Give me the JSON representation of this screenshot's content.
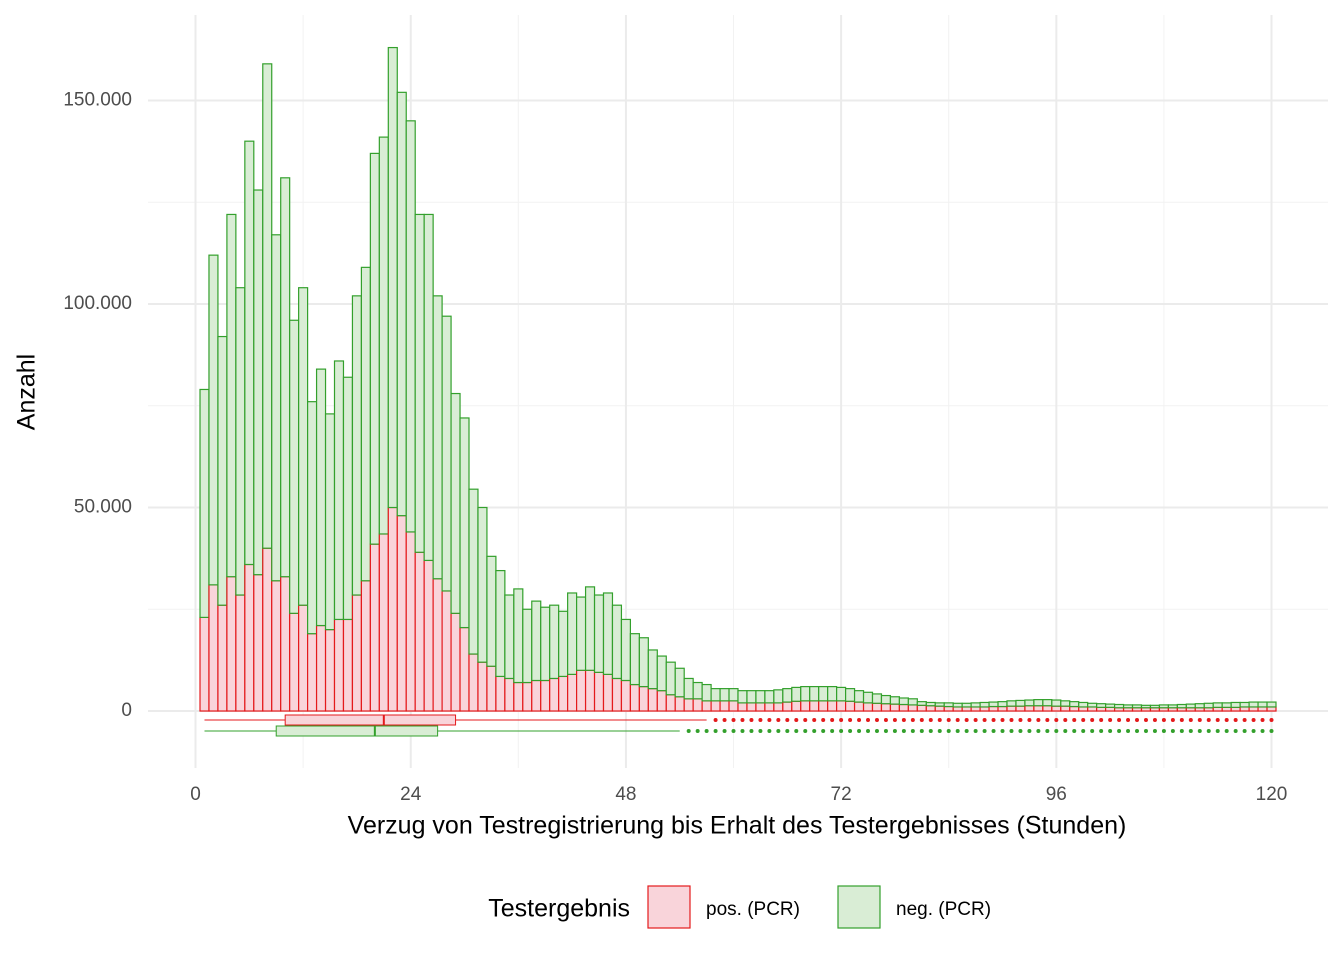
{
  "chart_data": {
    "type": "histogram",
    "x_label": "Verzug von Testregistrierung bis Erhalt des Testergebnisses (Stunden)",
    "y_label": "Anzahl",
    "legend_title": "Testergebnis",
    "legend": "bottom",
    "grid": true,
    "xlim": [
      -5.3,
      126.3
    ],
    "ylim": [
      -14000,
      171000
    ],
    "xticks": [
      0,
      24,
      48,
      72,
      96,
      120
    ],
    "xminor_ticks": [
      12,
      36,
      60,
      84,
      108
    ],
    "yticks": [
      0,
      {
        "value": 50000,
        "label": "50.000"
      },
      {
        "value": 100000,
        "label": "100.000"
      },
      {
        "value": 150000,
        "label": "150.000"
      }
    ],
    "yminor_ticks": [
      25000,
      75000,
      125000
    ],
    "bins": [
      0.5,
      1.5,
      2.5,
      3.5,
      4.5,
      5.5,
      6.5,
      7.5,
      8.5,
      9.5,
      10.5,
      11.5,
      12.5,
      13.5,
      14.5,
      15.5,
      16.5,
      17.5,
      18.5,
      19.5,
      20.5,
      21.5,
      22.5,
      23.5,
      24.5,
      25.5,
      26.5,
      27.5,
      28.5,
      29.5,
      30.5,
      31.5,
      32.5,
      33.5,
      34.5,
      35.5,
      36.5,
      37.5,
      38.5,
      39.5,
      40.5,
      41.5,
      42.5,
      43.5,
      44.5,
      45.5,
      46.5,
      47.5,
      48.5,
      49.5,
      50.5,
      51.5,
      52.5,
      53.5,
      54.5,
      55.5,
      56.5,
      57.5,
      58.5,
      59.5,
      60.5,
      61.5,
      62.5,
      63.5,
      64.5,
      65.5,
      66.5,
      67.5,
      68.5,
      69.5,
      70.5,
      71.5,
      72.5,
      73.5,
      74.5,
      75.5,
      76.5,
      77.5,
      78.5,
      79.5,
      80.5,
      81.5,
      82.5,
      83.5,
      84.5,
      85.5,
      86.5,
      87.5,
      88.5,
      89.5,
      90.5,
      91.5,
      92.5,
      93.5,
      94.5,
      95.5,
      96.5,
      97.5,
      98.5,
      99.5,
      100.5,
      101.5,
      102.5,
      103.5,
      104.5,
      105.5,
      106.5,
      107.5,
      108.5,
      109.5,
      110.5,
      111.5,
      112.5,
      113.5,
      114.5,
      115.5,
      116.5,
      117.5,
      118.5,
      119.5,
      120.5
    ],
    "series": [
      {
        "name": "pos. (PCR)",
        "color": "#e41a1c",
        "fill": "#f9d4da",
        "values": [
          23000,
          31000,
          26000,
          33000,
          28500,
          36000,
          33500,
          40000,
          32000,
          33000,
          24000,
          26000,
          19000,
          21000,
          20000,
          22500,
          22500,
          28500,
          32000,
          41000,
          43500,
          50000,
          48000,
          44000,
          39000,
          37000,
          32500,
          29500,
          24000,
          20500,
          14000,
          12000,
          11000,
          8500,
          8000,
          7000,
          7000,
          7500,
          7500,
          8000,
          8500,
          9000,
          10000,
          10000,
          9500,
          9000,
          8000,
          7500,
          6500,
          6000,
          5500,
          5000,
          4000,
          3500,
          3000,
          3000,
          2500,
          2500,
          2500,
          2500,
          2000,
          2000,
          2000,
          2000,
          2000,
          2200,
          2400,
          2500,
          2500,
          2500,
          2500,
          2500,
          2400,
          2200,
          2000,
          1900,
          1800,
          1700,
          1600,
          1500,
          1400,
          1300,
          1200,
          1100,
          1000,
          1000,
          1000,
          1000,
          1100,
          1100,
          1200,
          1200,
          1300,
          1300,
          1300,
          1200,
          1200,
          1100,
          1000,
          1000,
          900,
          900,
          800,
          800,
          800,
          800,
          800,
          800,
          800,
          800,
          800,
          800,
          800,
          900,
          900,
          900,
          1000,
          1000,
          1000,
          1000
        ],
        "box": {
          "whisker_low": 1,
          "q1": 10,
          "median": 21,
          "q3": 29,
          "whisker_high": 57
        },
        "outliers": [
          58,
          59,
          60,
          61,
          62,
          63,
          64,
          65,
          66,
          67,
          68,
          69,
          70,
          71,
          72,
          73,
          74,
          75,
          76,
          77,
          78,
          79,
          80,
          81,
          82,
          83,
          84,
          85,
          86,
          87,
          88,
          89,
          90,
          91,
          92,
          93,
          94,
          95,
          96,
          97,
          98,
          99,
          100,
          101,
          102,
          103,
          104,
          105,
          106,
          107,
          108,
          109,
          110,
          111,
          112,
          113,
          114,
          115,
          116,
          117,
          118,
          119,
          120
        ]
      },
      {
        "name": "neg. (PCR)",
        "color": "#33a02c",
        "fill": "#d9edd5",
        "values": [
          56000,
          81000,
          66000,
          89000,
          75500,
          104000,
          94500,
          119000,
          85000,
          98000,
          72000,
          78000,
          57000,
          63000,
          53000,
          63500,
          59500,
          73500,
          77000,
          96000,
          97500,
          113000,
          104000,
          101000,
          83000,
          85000,
          69500,
          67500,
          54000,
          51500,
          40500,
          38000,
          27000,
          26000,
          20500,
          23000,
          18000,
          19500,
          18000,
          18000,
          16000,
          20000,
          18000,
          20500,
          19000,
          20000,
          18000,
          15000,
          12500,
          12000,
          9500,
          8500,
          8000,
          7000,
          5000,
          4000,
          4000,
          3000,
          3000,
          3000,
          3000,
          3000,
          3000,
          3000,
          3200,
          3300,
          3400,
          3500,
          3500,
          3500,
          3500,
          3300,
          3100,
          2800,
          2600,
          2300,
          2000,
          1800,
          1600,
          1500,
          900,
          800,
          800,
          900,
          900,
          900,
          1000,
          1100,
          1100,
          1200,
          1300,
          1400,
          1400,
          1500,
          1500,
          1500,
          1300,
          1200,
          1100,
          900,
          900,
          800,
          800,
          700,
          700,
          600,
          600,
          700,
          700,
          800,
          900,
          1000,
          1100,
          1100,
          1100,
          1200,
          1100,
          1200,
          1200,
          1200
        ],
        "box": {
          "whisker_low": 1,
          "q1": 9,
          "median": 20,
          "q3": 27,
          "whisker_high": 54
        },
        "outliers": [
          55,
          56,
          57,
          58,
          59,
          60,
          61,
          62,
          63,
          64,
          65,
          66,
          67,
          68,
          69,
          70,
          71,
          72,
          73,
          74,
          75,
          76,
          77,
          78,
          79,
          80,
          81,
          82,
          83,
          84,
          85,
          86,
          87,
          88,
          89,
          90,
          91,
          92,
          93,
          94,
          95,
          96,
          97,
          98,
          99,
          100,
          101,
          102,
          103,
          104,
          105,
          106,
          107,
          108,
          109,
          110,
          111,
          112,
          113,
          114,
          115,
          116,
          117,
          118,
          119,
          120
        ]
      }
    ]
  }
}
